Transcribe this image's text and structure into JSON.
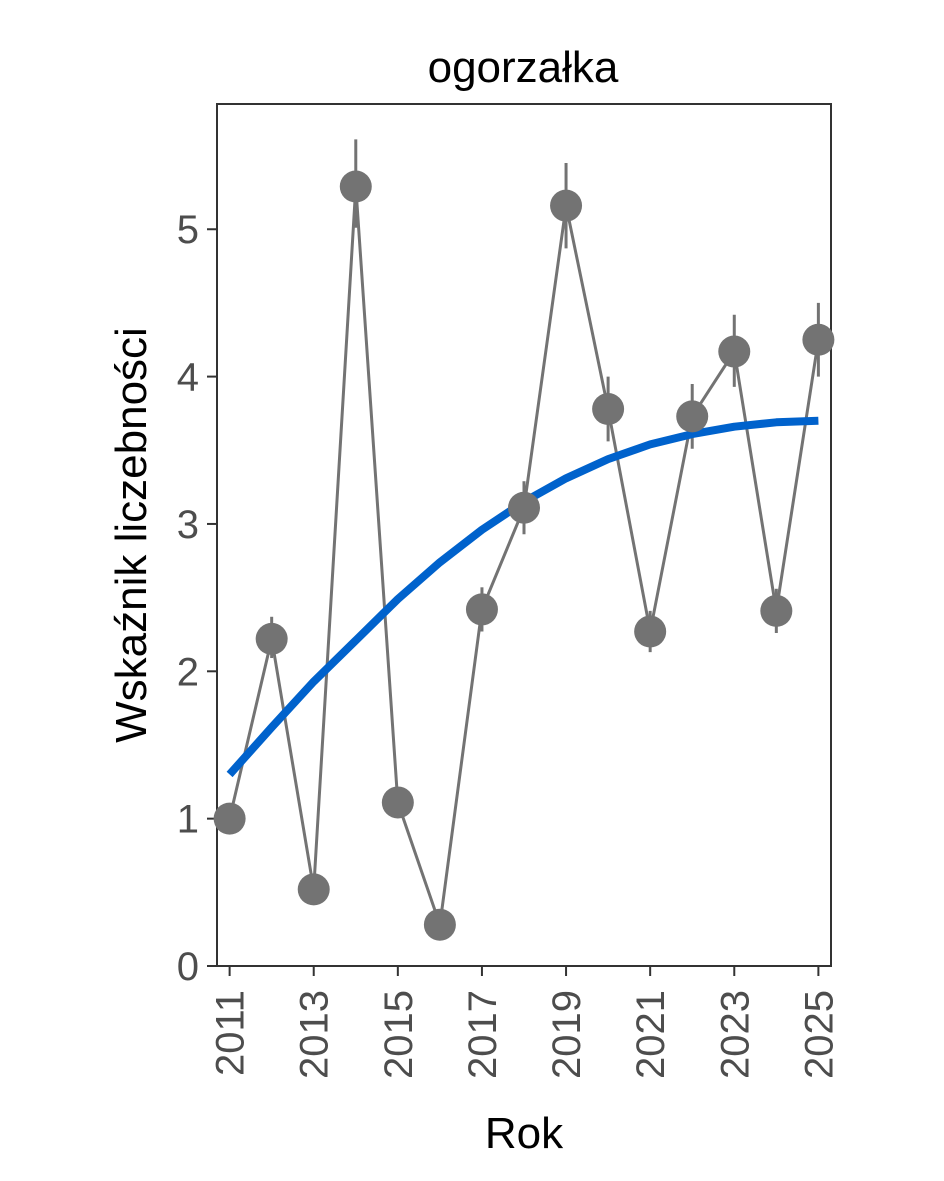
{
  "chart_data": {
    "type": "line",
    "title": "ogorzałka",
    "xlabel": "Rok",
    "ylabel": "Wskaźnik liczebności",
    "xlim": [
      2010.7,
      2025.3
    ],
    "ylim": [
      0,
      5.85
    ],
    "x_ticks": [
      2011,
      2013,
      2015,
      2017,
      2019,
      2021,
      2023,
      2025
    ],
    "y_ticks": [
      0,
      1,
      2,
      3,
      4,
      5
    ],
    "grid": false,
    "series": [
      {
        "kind": "observed",
        "color": "#737373",
        "x": [
          2011,
          2012,
          2013,
          2014,
          2015,
          2016,
          2017,
          2018,
          2019,
          2020,
          2021,
          2022,
          2023,
          2024,
          2025
        ],
        "y": [
          1.0,
          2.22,
          0.52,
          5.29,
          1.11,
          0.28,
          2.42,
          3.11,
          5.16,
          3.78,
          2.27,
          3.73,
          4.17,
          2.41,
          4.25
        ],
        "error_low": [
          1.0,
          2.09,
          0.5,
          5.01,
          1.08,
          0.27,
          2.27,
          2.93,
          4.87,
          3.56,
          2.13,
          3.51,
          3.93,
          2.26,
          4.0
        ],
        "error_high": [
          1.0,
          2.37,
          0.54,
          5.61,
          1.14,
          0.29,
          2.57,
          3.29,
          5.45,
          4.0,
          2.41,
          3.95,
          4.42,
          2.56,
          4.5
        ]
      },
      {
        "kind": "trend",
        "color": "#0062cc",
        "x": [
          2011,
          2012,
          2013,
          2014,
          2015,
          2016,
          2017,
          2018,
          2019,
          2020,
          2021,
          2022,
          2023,
          2024,
          2025
        ],
        "y": [
          1.3,
          1.62,
          1.93,
          2.21,
          2.49,
          2.74,
          2.96,
          3.15,
          3.31,
          3.44,
          3.54,
          3.61,
          3.66,
          3.69,
          3.7
        ]
      }
    ]
  }
}
